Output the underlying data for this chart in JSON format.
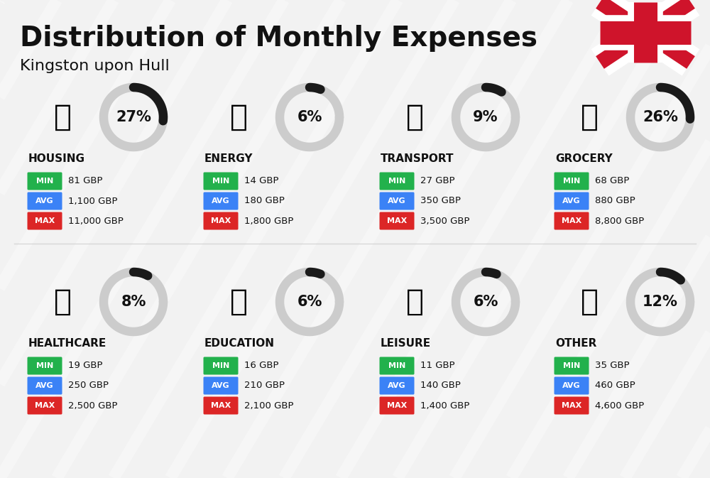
{
  "title": "Distribution of Monthly Expenses",
  "subtitle": "Kingston upon Hull",
  "background_color": "#f2f2f2",
  "title_fontsize": 28,
  "subtitle_fontsize": 16,
  "categories": [
    {
      "name": "HOUSING",
      "pct": 27,
      "min_val": "81 GBP",
      "avg_val": "1,100 GBP",
      "max_val": "11,000 GBP",
      "col": 0,
      "row": 0
    },
    {
      "name": "ENERGY",
      "pct": 6,
      "min_val": "14 GBP",
      "avg_val": "180 GBP",
      "max_val": "1,800 GBP",
      "col": 1,
      "row": 0
    },
    {
      "name": "TRANSPORT",
      "pct": 9,
      "min_val": "27 GBP",
      "avg_val": "350 GBP",
      "max_val": "3,500 GBP",
      "col": 2,
      "row": 0
    },
    {
      "name": "GROCERY",
      "pct": 26,
      "min_val": "68 GBP",
      "avg_val": "880 GBP",
      "max_val": "8,800 GBP",
      "col": 3,
      "row": 0
    },
    {
      "name": "HEALTHCARE",
      "pct": 8,
      "min_val": "19 GBP",
      "avg_val": "250 GBP",
      "max_val": "2,500 GBP",
      "col": 0,
      "row": 1
    },
    {
      "name": "EDUCATION",
      "pct": 6,
      "min_val": "16 GBP",
      "avg_val": "210 GBP",
      "max_val": "2,100 GBP",
      "col": 1,
      "row": 1
    },
    {
      "name": "LEISURE",
      "pct": 6,
      "min_val": "11 GBP",
      "avg_val": "140 GBP",
      "max_val": "1,400 GBP",
      "col": 2,
      "row": 1
    },
    {
      "name": "OTHER",
      "pct": 12,
      "min_val": "35 GBP",
      "avg_val": "460 GBP",
      "max_val": "4,600 GBP",
      "col": 3,
      "row": 1
    }
  ],
  "min_color": "#22b14c",
  "avg_color": "#3b82f6",
  "max_color": "#dc2626",
  "arc_dark_color": "#1a1a1a",
  "arc_light_color": "#cccccc",
  "text_color": "#111111",
  "cat_fontsize": 11,
  "val_fontsize": 9,
  "pct_fontsize": 15,
  "icon_fontsize": 30
}
